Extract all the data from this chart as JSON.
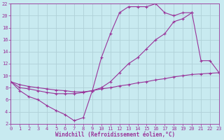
{
  "title": "",
  "xlabel": "Windchill (Refroidissement éolien,°C)",
  "ylabel": "",
  "bg_color": "#c8eaf0",
  "line_color": "#993399",
  "grid_color": "#b0d0d8",
  "xlim": [
    0,
    23
  ],
  "ylim": [
    2,
    22
  ],
  "xticks": [
    0,
    1,
    2,
    3,
    4,
    5,
    6,
    7,
    8,
    9,
    10,
    11,
    12,
    13,
    14,
    15,
    16,
    17,
    18,
    19,
    20,
    21,
    22,
    23
  ],
  "yticks": [
    2,
    4,
    6,
    8,
    10,
    12,
    14,
    16,
    18,
    20,
    22
  ],
  "line1_x": [
    0,
    1,
    2,
    3,
    4,
    5,
    6,
    7,
    8,
    9,
    10,
    11,
    12,
    13,
    14,
    15,
    16,
    17,
    18,
    19,
    20
  ],
  "line1_y": [
    9,
    7.5,
    6.5,
    6.0,
    5.0,
    4.2,
    3.5,
    2.5,
    3.0,
    7.5,
    13.0,
    17.0,
    20.5,
    21.5,
    21.5,
    21.5,
    22.0,
    20.5,
    20.0,
    20.5,
    20.5
  ],
  "line2_x": [
    0,
    1,
    2,
    3,
    4,
    5,
    6,
    7,
    8,
    9,
    10,
    11,
    12,
    13,
    14,
    15,
    16,
    17,
    18,
    19,
    20,
    21,
    22,
    23
  ],
  "line2_y": [
    9,
    8.0,
    7.8,
    7.5,
    7.2,
    7.0,
    7.0,
    7.0,
    7.2,
    7.5,
    8.0,
    9.0,
    10.5,
    12.0,
    13.0,
    14.5,
    16.0,
    17.0,
    19.0,
    19.5,
    20.5,
    12.5,
    12.5,
    10.5
  ],
  "line3_x": [
    0,
    1,
    2,
    3,
    4,
    5,
    6,
    7,
    8,
    9,
    10,
    11,
    12,
    13,
    14,
    15,
    16,
    17,
    18,
    19,
    20,
    21,
    22,
    23
  ],
  "line3_y": [
    9,
    8.5,
    8.2,
    8.0,
    7.8,
    7.6,
    7.5,
    7.3,
    7.3,
    7.5,
    7.8,
    8.0,
    8.3,
    8.5,
    8.8,
    9.0,
    9.3,
    9.5,
    9.8,
    10.0,
    10.2,
    10.3,
    10.4,
    10.5
  ]
}
